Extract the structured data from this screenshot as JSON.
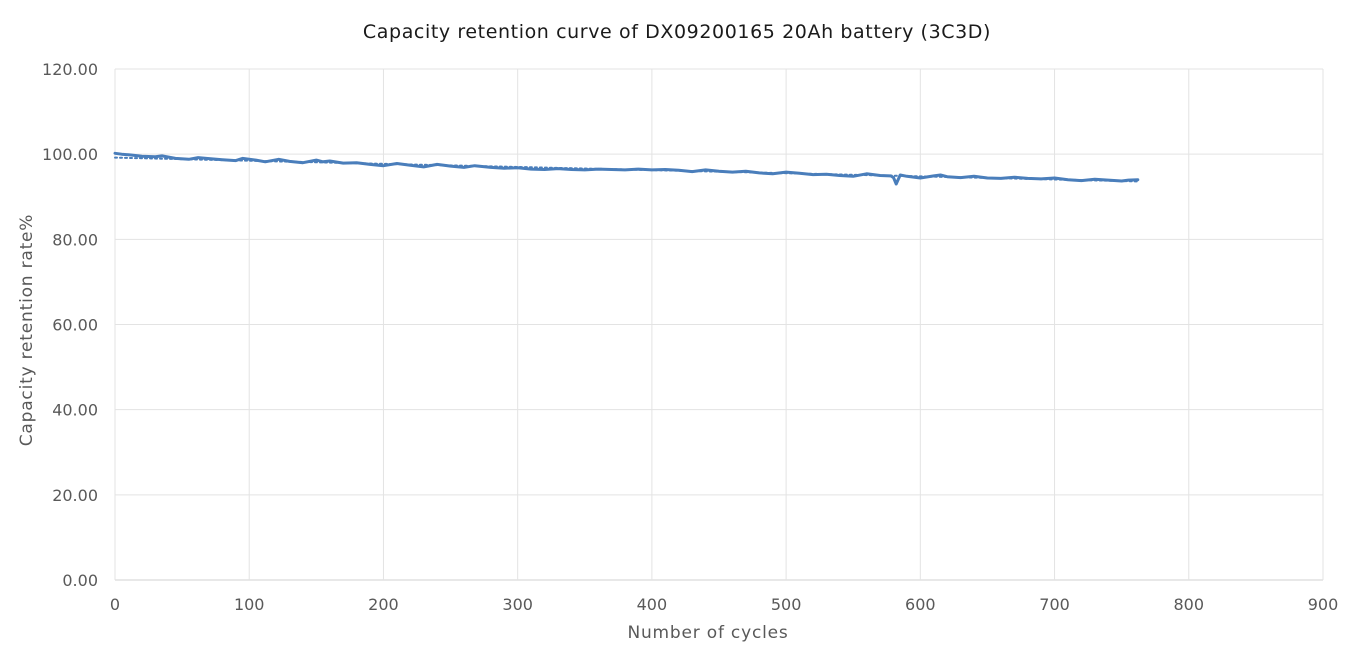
{
  "chart_data": {
    "type": "line",
    "title": "Capacity retention curve of DX09200165 20Ah battery (3C3D)",
    "xlabel": "Number of cycles",
    "ylabel": "Capacity retention rate%",
    "xlim": [
      0,
      900
    ],
    "ylim": [
      0,
      120
    ],
    "x_ticks": [
      "0",
      "100",
      "200",
      "300",
      "400",
      "500",
      "600",
      "700",
      "800",
      "900"
    ],
    "y_ticks": [
      "0.00",
      "20.00",
      "40.00",
      "60.00",
      "80.00",
      "100.00",
      "120.00"
    ],
    "grid": true,
    "legend": "none",
    "series": [
      {
        "style": "solid",
        "color": "#4a7ebb",
        "x": [
          0,
          5,
          12,
          20,
          30,
          35,
          45,
          55,
          62,
          68,
          80,
          90,
          95,
          105,
          112,
          122,
          130,
          140,
          150,
          155,
          160,
          170,
          180,
          190,
          200,
          210,
          220,
          230,
          240,
          250,
          260,
          268,
          280,
          290,
          300,
          310,
          320,
          330,
          340,
          350,
          360,
          370,
          380,
          390,
          400,
          410,
          420,
          430,
          440,
          450,
          460,
          470,
          480,
          490,
          500,
          510,
          520,
          530,
          540,
          550,
          560,
          570,
          578,
          580,
          582,
          585,
          590,
          600,
          610,
          615,
          620,
          630,
          640,
          650,
          660,
          670,
          680,
          690,
          700,
          710,
          720,
          730,
          740,
          750,
          755,
          762
        ],
        "y": [
          100.2,
          100.0,
          99.8,
          99.5,
          99.4,
          99.6,
          99.0,
          98.8,
          99.2,
          99.0,
          98.7,
          98.5,
          99.0,
          98.6,
          98.2,
          98.8,
          98.3,
          98.0,
          98.6,
          98.2,
          98.4,
          97.9,
          98.0,
          97.6,
          97.3,
          97.8,
          97.4,
          97.0,
          97.6,
          97.2,
          96.9,
          97.3,
          96.9,
          96.7,
          96.8,
          96.5,
          96.4,
          96.6,
          96.4,
          96.3,
          96.5,
          96.4,
          96.3,
          96.5,
          96.3,
          96.4,
          96.2,
          95.9,
          96.3,
          96.0,
          95.8,
          96.0,
          95.6,
          95.4,
          95.8,
          95.5,
          95.2,
          95.3,
          95.0,
          94.8,
          95.4,
          95.0,
          94.9,
          94.5,
          93.0,
          95.1,
          94.8,
          94.4,
          94.9,
          95.1,
          94.7,
          94.5,
          94.8,
          94.4,
          94.3,
          94.6,
          94.3,
          94.2,
          94.4,
          94.0,
          93.8,
          94.1,
          93.9,
          93.7,
          93.9,
          94.0
        ]
      },
      {
        "style": "dotted",
        "color": "#4a7ebb",
        "x": [
          0,
          762
        ],
        "y": [
          99.2,
          93.6
        ]
      }
    ]
  }
}
